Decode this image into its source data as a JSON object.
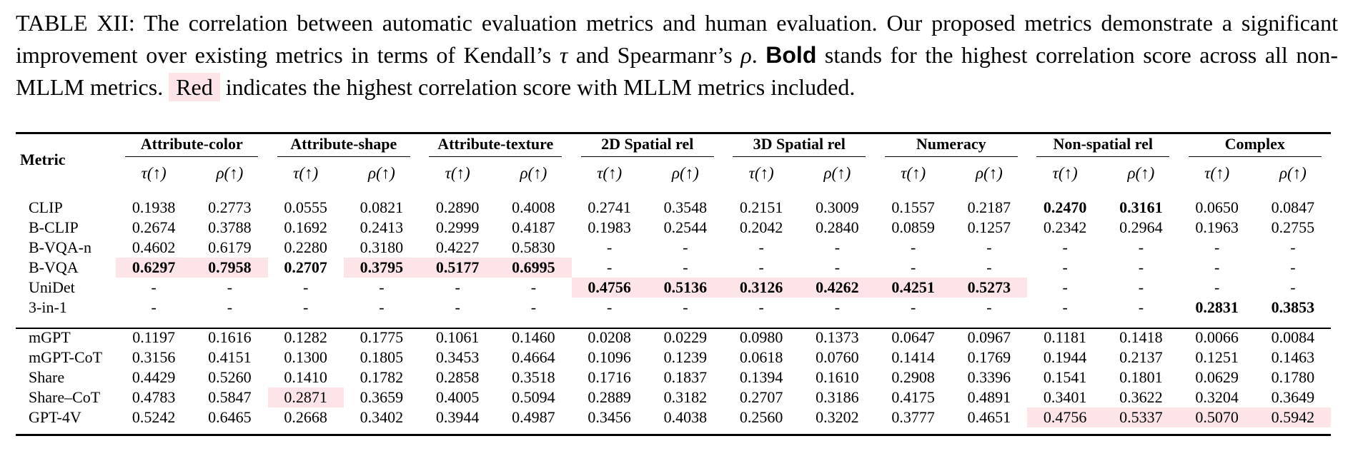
{
  "caption": {
    "text1": "TABLE XII: The correlation between automatic evaluation metrics and human evaluation. Our proposed metrics demonstrate a significant improvement over existing metrics in terms of Kendall’s ",
    "tau": "τ",
    "text2": " and Spearmanr’s ",
    "rho": "ρ",
    "text3": ". ",
    "bold_word": "Bold",
    "text4": " stands for the highest correlation score across all non-MLLM metrics. ",
    "red_word": "Red",
    "text5": " indicates the highest correlation score with MLLM metrics included."
  },
  "table": {
    "metric_header": "Metric",
    "groups": [
      "Attribute-color",
      "Attribute-shape",
      "Attribute-texture",
      "2D Spatial rel",
      "3D Spatial rel",
      "Numeracy",
      "Non-spatial rel",
      "Complex"
    ],
    "tau_label": "τ(↑)",
    "rho_label": "ρ(↑)",
    "rows_top": [
      {
        "name": "CLIP",
        "vals": [
          "0.1938",
          "0.2773",
          "0.0555",
          "0.0821",
          "0.2890",
          "0.4008",
          "0.2741",
          "0.3548",
          "0.2151",
          "0.3009",
          "0.1557",
          "0.2187",
          "0.2470",
          "0.3161",
          "0.0650",
          "0.0847"
        ]
      },
      {
        "name": "B-CLIP",
        "vals": [
          "0.2674",
          "0.3788",
          "0.1692",
          "0.2413",
          "0.2999",
          "0.4187",
          "0.1983",
          "0.2544",
          "0.2042",
          "0.2840",
          "0.0859",
          "0.1257",
          "0.2342",
          "0.2964",
          "0.1963",
          "0.2755"
        ]
      },
      {
        "name": "B-VQA-n",
        "vals": [
          "0.4602",
          "0.6179",
          "0.2280",
          "0.3180",
          "0.4227",
          "0.5830",
          "-",
          "-",
          "-",
          "-",
          "-",
          "-",
          "-",
          "-",
          "-",
          "-"
        ]
      },
      {
        "name": "B-VQA",
        "vals": [
          "0.6297",
          "0.7958",
          "0.2707",
          "0.3795",
          "0.5177",
          "0.6995",
          "-",
          "-",
          "-",
          "-",
          "-",
          "-",
          "-",
          "-",
          "-",
          "-"
        ]
      },
      {
        "name": "UniDet",
        "vals": [
          "-",
          "-",
          "-",
          "-",
          "-",
          "-",
          "0.4756",
          "0.5136",
          "0.3126",
          "0.4262",
          "0.4251",
          "0.5273",
          "-",
          "-",
          "-",
          "-"
        ]
      },
      {
        "name": "3-in-1",
        "vals": [
          "-",
          "-",
          "-",
          "-",
          "-",
          "-",
          "-",
          "-",
          "-",
          "-",
          "-",
          "-",
          "-",
          "-",
          "0.2831",
          "0.3853"
        ]
      }
    ],
    "rows_bottom": [
      {
        "name": "mGPT",
        "vals": [
          "0.1197",
          "0.1616",
          "0.1282",
          "0.1775",
          "0.1061",
          "0.1460",
          "0.0208",
          "0.0229",
          "0.0980",
          "0.1373",
          "0.0647",
          "0.0967",
          "0.1181",
          "0.1418",
          "0.0066",
          "0.0084"
        ]
      },
      {
        "name": "mGPT-CoT",
        "vals": [
          "0.3156",
          "0.4151",
          "0.1300",
          "0.1805",
          "0.3453",
          "0.4664",
          "0.1096",
          "0.1239",
          "0.0618",
          "0.0760",
          "0.1414",
          "0.1769",
          "0.1944",
          "0.2137",
          "0.1251",
          "0.1463"
        ]
      },
      {
        "name": "Share",
        "vals": [
          "0.4429",
          "0.5260",
          "0.1410",
          "0.1782",
          "0.2858",
          "0.3518",
          "0.1716",
          "0.1837",
          "0.1394",
          "0.1610",
          "0.2908",
          "0.3396",
          "0.1541",
          "0.1801",
          "0.0629",
          "0.1780"
        ]
      },
      {
        "name": "Share–CoT",
        "vals": [
          "0.4783",
          "0.5847",
          "0.2871",
          "0.3659",
          "0.4005",
          "0.5094",
          "0.2889",
          "0.3182",
          "0.2707",
          "0.3186",
          "0.4175",
          "0.4891",
          "0.3401",
          "0.3622",
          "0.3204",
          "0.3649"
        ]
      },
      {
        "name": "GPT-4V",
        "vals": [
          "0.5242",
          "0.6465",
          "0.2668",
          "0.3402",
          "0.3944",
          "0.4987",
          "0.3456",
          "0.4038",
          "0.2560",
          "0.3202",
          "0.3777",
          "0.4651",
          "0.4756",
          "0.5337",
          "0.5070",
          "0.5942"
        ]
      }
    ],
    "colors": {
      "red_highlight": "#fde4e6"
    }
  }
}
